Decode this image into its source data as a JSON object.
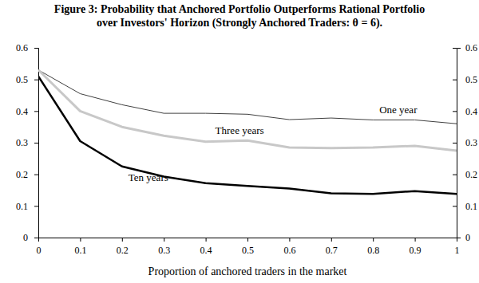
{
  "chart_data": {
    "type": "line",
    "title": [
      "Figure 3: Probability that Anchored Portfolio Outperforms Rational Portfolio",
      "over Investors' Horizon  (Strongly Anchored Traders: θ = 6)."
    ],
    "x_label": "Proportion of anchored traders in the market",
    "x": [
      0,
      0.1,
      0.2,
      0.3,
      0.4,
      0.5,
      0.6,
      0.7,
      0.8,
      0.9,
      1
    ],
    "xlim": [
      0,
      1
    ],
    "xticks": [
      0,
      0.1,
      0.2,
      0.3,
      0.4,
      0.5,
      0.6,
      0.7,
      0.8,
      0.9,
      1
    ],
    "ylim": [
      0,
      0.6
    ],
    "yticks": [
      0,
      0.1,
      0.2,
      0.3,
      0.4,
      0.5,
      0.6
    ],
    "y2lim": [
      0,
      0.6
    ],
    "y2ticks": [
      0,
      0.1,
      0.2,
      0.3,
      0.4,
      0.5,
      0.6
    ],
    "grid": false,
    "series": [
      {
        "name": "One year",
        "color": "#404040",
        "values": [
          0.53,
          0.455,
          0.42,
          0.393,
          0.393,
          0.39,
          0.373,
          0.378,
          0.372,
          0.372,
          0.36
        ]
      },
      {
        "name": "Three years",
        "color": "#c8c8c8",
        "values": [
          0.53,
          0.4,
          0.35,
          0.322,
          0.303,
          0.307,
          0.285,
          0.283,
          0.285,
          0.29,
          0.275
        ]
      },
      {
        "name": "Ten years",
        "color": "#000000",
        "values": [
          0.51,
          0.305,
          0.225,
          0.193,
          0.172,
          0.163,
          0.155,
          0.14,
          0.138,
          0.147,
          0.138
        ]
      }
    ]
  }
}
